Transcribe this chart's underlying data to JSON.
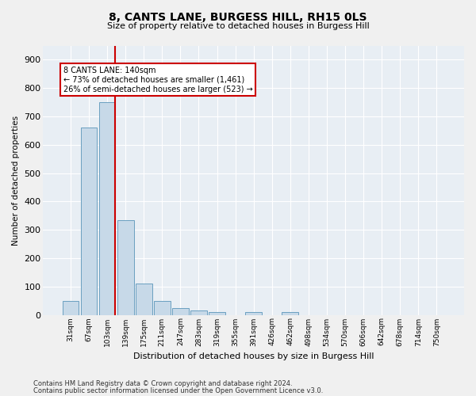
{
  "title": "8, CANTS LANE, BURGESS HILL, RH15 0LS",
  "subtitle": "Size of property relative to detached houses in Burgess Hill",
  "xlabel": "Distribution of detached houses by size in Burgess Hill",
  "ylabel": "Number of detached properties",
  "footnote1": "Contains HM Land Registry data © Crown copyright and database right 2024.",
  "footnote2": "Contains public sector information licensed under the Open Government Licence v3.0.",
  "bar_labels": [
    "31sqm",
    "67sqm",
    "103sqm",
    "139sqm",
    "175sqm",
    "211sqm",
    "247sqm",
    "283sqm",
    "319sqm",
    "355sqm",
    "391sqm",
    "426sqm",
    "462sqm",
    "498sqm",
    "534sqm",
    "570sqm",
    "606sqm",
    "642sqm",
    "678sqm",
    "714sqm",
    "750sqm"
  ],
  "bar_values": [
    50,
    660,
    750,
    335,
    110,
    50,
    25,
    15,
    10,
    0,
    10,
    0,
    10,
    0,
    0,
    0,
    0,
    0,
    0,
    0,
    0
  ],
  "bar_color": "#c7d9e8",
  "bar_edge_color": "#6a9fc0",
  "bg_color": "#e8eef4",
  "grid_color": "#ffffff",
  "property_label": "8 CANTS LANE: 140sqm",
  "annotation_line1": "← 73% of detached houses are smaller (1,461)",
  "annotation_line2": "26% of semi-detached houses are larger (523) →",
  "annotation_box_color": "#ffffff",
  "annotation_box_edge_color": "#cc0000",
  "ylim": [
    0,
    950
  ],
  "yticks": [
    0,
    100,
    200,
    300,
    400,
    500,
    600,
    700,
    800,
    900
  ],
  "fig_bg": "#f0f0f0"
}
